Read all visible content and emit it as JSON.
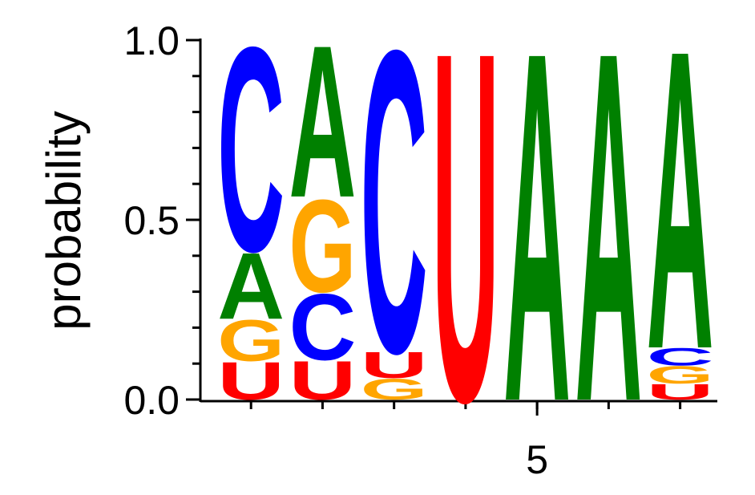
{
  "chart_data": {
    "type": "sequence_logo",
    "y_label": "probability",
    "x": [
      1,
      2,
      3,
      4,
      5,
      6,
      7
    ],
    "positions": [
      {
        "letters": [
          {
            "letter": "U",
            "value": 0.107
          },
          {
            "letter": "G",
            "value": 0.118
          },
          {
            "letter": "A",
            "value": 0.19
          },
          {
            "letter": "C",
            "value": 0.585
          }
        ]
      },
      {
        "letters": [
          {
            "letter": "U",
            "value": 0.11
          },
          {
            "letter": "C",
            "value": 0.19
          },
          {
            "letter": "G",
            "value": 0.265
          },
          {
            "letter": "A",
            "value": 0.435
          }
        ]
      },
      {
        "letters": [
          {
            "letter": "G",
            "value": 0.06
          },
          {
            "letter": "U",
            "value": 0.075
          },
          {
            "letter": "C",
            "value": 0.865
          }
        ]
      },
      {
        "letters": [
          {
            "letter": "U",
            "value": 1.0
          }
        ]
      },
      {
        "letters": [
          {
            "letter": "A",
            "value": 1.0
          }
        ]
      },
      {
        "letters": [
          {
            "letter": "A",
            "value": 1.0
          }
        ]
      },
      {
        "letters": [
          {
            "letter": "U",
            "value": 0.045
          },
          {
            "letter": "G",
            "value": 0.05
          },
          {
            "letter": "C",
            "value": 0.05
          },
          {
            "letter": "A",
            "value": 0.855
          }
        ]
      }
    ],
    "colors": {
      "A": "#008000",
      "C": "#0000ff",
      "G": "#ffa500",
      "U": "#ff0000"
    },
    "xlim": [
      0.46,
      7.52
    ],
    "xticks": [
      5
    ],
    "ylim": [
      0,
      1
    ],
    "yticks": [
      {
        "value": 0,
        "label": "0.0"
      },
      {
        "value": 0.5,
        "label": "0.5"
      },
      {
        "value": 1,
        "label": "1.0"
      }
    ],
    "yminorticks": [
      0.1,
      0.2,
      0.3,
      0.4,
      0.6,
      0.7,
      0.8,
      0.9
    ]
  }
}
